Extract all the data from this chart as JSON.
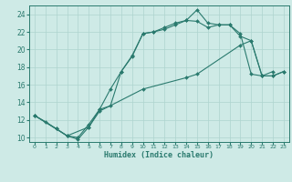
{
  "xlabel": "Humidex (Indice chaleur)",
  "background_color": "#ceeae6",
  "grid_color": "#aed4cf",
  "line_color": "#2a7a6e",
  "xlim": [
    -0.5,
    23.5
  ],
  "ylim": [
    9.5,
    25.0
  ],
  "xticks": [
    0,
    1,
    2,
    3,
    4,
    5,
    6,
    7,
    8,
    9,
    10,
    11,
    12,
    13,
    14,
    15,
    16,
    17,
    18,
    19,
    20,
    21,
    22,
    23
  ],
  "yticks": [
    10,
    12,
    14,
    16,
    18,
    20,
    22,
    24
  ],
  "line1_x": [
    0,
    1,
    2,
    3,
    4,
    5,
    6,
    7,
    8,
    9,
    10,
    11,
    12,
    13,
    14,
    15,
    16,
    17,
    18,
    19,
    20,
    21,
    22
  ],
  "line1_y": [
    12.5,
    11.8,
    11.0,
    10.2,
    10.0,
    11.5,
    13.2,
    13.6,
    17.5,
    19.2,
    21.8,
    22.0,
    22.5,
    23.0,
    23.3,
    24.5,
    23.0,
    22.8,
    22.8,
    21.8,
    17.2,
    17.0,
    17.5
  ],
  "line2_x": [
    0,
    2,
    3,
    4,
    5,
    6,
    7,
    8,
    9,
    10,
    11,
    12,
    13,
    14,
    15,
    16,
    17,
    18,
    19,
    20,
    21,
    22,
    23
  ],
  "line2_y": [
    12.5,
    11.0,
    10.2,
    9.8,
    11.2,
    13.2,
    15.5,
    17.5,
    19.3,
    21.8,
    22.0,
    22.3,
    22.8,
    23.3,
    23.2,
    22.5,
    22.8,
    22.8,
    21.5,
    21.0,
    17.0,
    17.0,
    17.5
  ],
  "line3_x": [
    0,
    3,
    5,
    6,
    10,
    14,
    15,
    19,
    20,
    21,
    22,
    23
  ],
  "line3_y": [
    12.5,
    10.2,
    11.2,
    13.0,
    15.5,
    16.8,
    17.2,
    20.5,
    21.0,
    17.0,
    17.0,
    17.5
  ]
}
